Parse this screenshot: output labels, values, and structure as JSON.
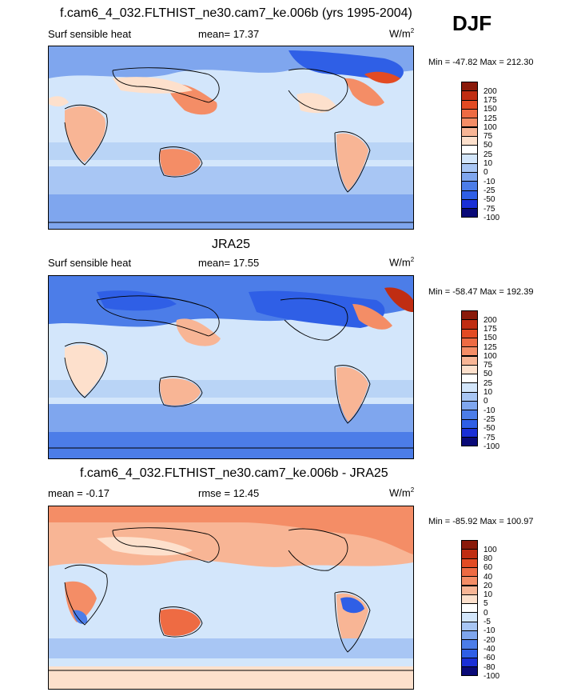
{
  "header": {
    "title": "f.cam6_4_032.FLTHIST_ne30.cam7_ke.006b (yrs 1995-2004)",
    "season": "DJF"
  },
  "colors": {
    "scale12": [
      "#0a0a78",
      "#1a2fd6",
      "#2f5fe6",
      "#4c7de8",
      "#7fa6ee",
      "#a8c6f4",
      "#d3e6fb",
      "#ffffff",
      "#fde0cc",
      "#f8b595",
      "#f48d66",
      "#ee6b43",
      "#e34b23",
      "#c02d12",
      "#8a1a0a"
    ],
    "ocean": "#d3e6fb",
    "land_warm": "#f8b595",
    "deep_blue": "#2f5fe6"
  },
  "panels": [
    {
      "title": "",
      "left_label": "Surf sensible heat",
      "center_label": "mean=  17.37",
      "units": "W/m",
      "units_sup": "2",
      "minmax": "Min = -47.82 Max = 212.30",
      "colorbar": {
        "ticks": [
          "200",
          "175",
          "150",
          "125",
          "100",
          "75",
          "50",
          "25",
          "10",
          "0",
          "-10",
          "-25",
          "-50",
          "-75",
          "-100"
        ],
        "colors": [
          "#8a1a0a",
          "#c02d12",
          "#e34b23",
          "#ee6b43",
          "#f48d66",
          "#f8b595",
          "#fde0cc",
          "#ffffff",
          "#d3e6fb",
          "#a8c6f4",
          "#7fa6ee",
          "#4c7de8",
          "#2f5fe6",
          "#1a2fd6",
          "#0a0a78"
        ]
      }
    },
    {
      "title": "JRA25",
      "left_label": "Surf sensible heat",
      "center_label": "mean=  17.55",
      "units": "W/m",
      "units_sup": "2",
      "minmax": "Min = -58.47 Max = 192.39",
      "colorbar": {
        "ticks": [
          "200",
          "175",
          "150",
          "125",
          "100",
          "75",
          "50",
          "25",
          "10",
          "0",
          "-10",
          "-25",
          "-50",
          "-75",
          "-100"
        ],
        "colors": [
          "#8a1a0a",
          "#c02d12",
          "#e34b23",
          "#ee6b43",
          "#f48d66",
          "#f8b595",
          "#fde0cc",
          "#ffffff",
          "#d3e6fb",
          "#a8c6f4",
          "#7fa6ee",
          "#4c7de8",
          "#2f5fe6",
          "#1a2fd6",
          "#0a0a78"
        ]
      }
    },
    {
      "title": "f.cam6_4_032.FLTHIST_ne30.cam7_ke.006b - JRA25",
      "left_label": "mean =  -0.17",
      "center_label": "rmse =  12.45",
      "units": "W/m",
      "units_sup": "2",
      "minmax": "Min = -85.92 Max = 100.97",
      "colorbar": {
        "ticks": [
          "100",
          "80",
          "60",
          "40",
          "20",
          "10",
          "5",
          "0",
          "-5",
          "-10",
          "-20",
          "-40",
          "-60",
          "-80",
          "-100"
        ],
        "colors": [
          "#8a1a0a",
          "#c02d12",
          "#e34b23",
          "#ee6b43",
          "#f48d66",
          "#f8b595",
          "#fde0cc",
          "#ffffff",
          "#d3e6fb",
          "#a8c6f4",
          "#7fa6ee",
          "#4c7de8",
          "#2f5fe6",
          "#1a2fd6",
          "#0a0a78"
        ]
      }
    }
  ],
  "chart_data": [
    {
      "type": "heatmap",
      "title": "f.cam6_4_032.FLTHIST_ne30.cam7_ke.006b (yrs 1995-2004)",
      "variable": "Surf sensible heat",
      "mean": 17.37,
      "min": -47.82,
      "max": 212.3,
      "units": "W/m2",
      "levels": [
        -100,
        -75,
        -50,
        -25,
        -10,
        0,
        10,
        25,
        50,
        75,
        100,
        125,
        150,
        175,
        200
      ]
    },
    {
      "type": "heatmap",
      "title": "JRA25",
      "variable": "Surf sensible heat",
      "mean": 17.55,
      "min": -58.47,
      "max": 192.39,
      "units": "W/m2",
      "levels": [
        -100,
        -75,
        -50,
        -25,
        -10,
        0,
        10,
        25,
        50,
        75,
        100,
        125,
        150,
        175,
        200
      ]
    },
    {
      "type": "heatmap",
      "title": "f.cam6_4_032.FLTHIST_ne30.cam7_ke.006b - JRA25",
      "mean": -0.17,
      "rmse": 12.45,
      "min": -85.92,
      "max": 100.97,
      "units": "W/m2",
      "levels": [
        -100,
        -80,
        -60,
        -40,
        -20,
        -10,
        -5,
        0,
        5,
        10,
        20,
        40,
        60,
        80,
        100
      ]
    }
  ]
}
